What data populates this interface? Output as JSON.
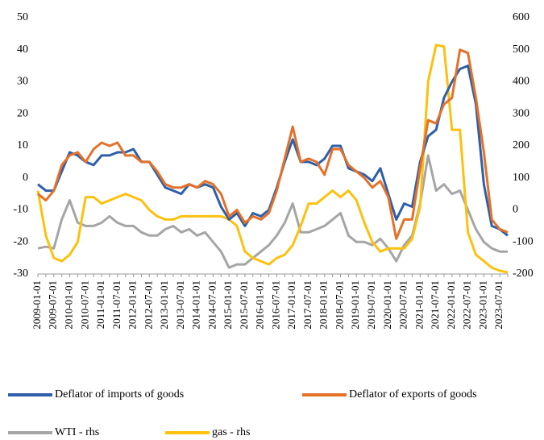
{
  "chart_data": {
    "type": "line",
    "categories": [
      "2009-01-01",
      null,
      "2009-07-01",
      null,
      "2010-01-01",
      null,
      "2010-07-01",
      null,
      "2011-01-01",
      null,
      "2011-07-01",
      null,
      "2012-01-01",
      null,
      "2012-07-01",
      null,
      "2013-01-01",
      null,
      "2013-07-01",
      null,
      "2014-01-01",
      null,
      "2014-07-01",
      null,
      "2015-01-01",
      null,
      "2015-07-01",
      null,
      "2016-01-01",
      null,
      "2016-07-01",
      null,
      "2017-01-01",
      null,
      "2017-07-01",
      null,
      "2018-01-01",
      null,
      "2018-07-01",
      null,
      "2019-01-01",
      null,
      "2019-07-01",
      null,
      "2020-01-01",
      null,
      "2020-07-01",
      null,
      "2021-01-01",
      null,
      "2021-07-01",
      null,
      "2022-01-01",
      null,
      "2022-07-01",
      null,
      "2023-01-01",
      null,
      "2023-07-01",
      null
    ],
    "series": [
      {
        "name": "Deflator of imports of goods",
        "color": "#2e5fa8",
        "values": [
          -2,
          -4,
          -4,
          2,
          8,
          7,
          5,
          4,
          7,
          7,
          8,
          8,
          9,
          5,
          5,
          1,
          -3,
          -4,
          -5,
          -2,
          -3,
          -2,
          -3,
          -9,
          -13,
          -11,
          -15,
          -11,
          -12,
          -10,
          -3,
          5,
          12,
          5,
          5,
          4,
          6,
          10,
          10,
          3,
          2,
          1,
          -1,
          3,
          -5,
          -13,
          -8,
          -9,
          5,
          13,
          15,
          25,
          30,
          34,
          35,
          23,
          -2,
          -15,
          -16,
          -18
        ]
      },
      {
        "name": "Deflator of exports of goods",
        "color": "#e4712a",
        "values": [
          -5,
          -7,
          -4,
          4,
          7,
          8,
          5,
          9,
          11,
          10,
          11,
          7,
          7,
          5,
          5,
          2,
          -2,
          -3,
          -3,
          -2,
          -3,
          -1,
          -2,
          -5,
          -12,
          -10,
          -14,
          -12,
          -13,
          -11,
          -4,
          6,
          16,
          5,
          6,
          5,
          1,
          9,
          9,
          4,
          2,
          0,
          -3,
          -1,
          -6,
          -19,
          -13,
          -13,
          3,
          18,
          17,
          23,
          25,
          40,
          39,
          25,
          8,
          -13,
          -16,
          -17
        ]
      },
      {
        "name": "WTI - rhs",
        "color": "#a5a5a5",
        "axis": "y2",
        "values": [
          -120,
          -115,
          -120,
          -30,
          30,
          -40,
          -50,
          -50,
          -40,
          -20,
          -40,
          -50,
          -50,
          -70,
          -80,
          -80,
          -60,
          -50,
          -70,
          -60,
          -80,
          -70,
          -100,
          -130,
          -180,
          -170,
          -170,
          -150,
          -130,
          -110,
          -80,
          -40,
          20,
          -70,
          -70,
          -60,
          -50,
          -30,
          -10,
          -80,
          -100,
          -100,
          -110,
          -90,
          -120,
          -160,
          -110,
          -80,
          20,
          170,
          60,
          80,
          50,
          60,
          0,
          -60,
          -100,
          -120,
          -130,
          -130
        ]
      },
      {
        "name": "gas - rhs",
        "color": "#fcc10f",
        "axis": "y2",
        "values": [
          60,
          -80,
          -150,
          -160,
          -140,
          -100,
          40,
          40,
          20,
          30,
          40,
          50,
          40,
          30,
          0,
          -20,
          -30,
          -30,
          -20,
          -20,
          -20,
          -20,
          -20,
          -20,
          -30,
          -50,
          -130,
          -150,
          -160,
          -170,
          -150,
          -140,
          -110,
          -50,
          20,
          20,
          40,
          60,
          40,
          60,
          30,
          -40,
          -100,
          -130,
          -120,
          -120,
          -120,
          -90,
          10,
          400,
          515,
          510,
          250,
          250,
          -70,
          -140,
          -160,
          -180,
          -190,
          -195
        ]
      }
    ],
    "ylim": [
      -30,
      50
    ],
    "yticks": [
      -30,
      -20,
      -10,
      0,
      10,
      20,
      30,
      40,
      50
    ],
    "y2lim": [
      -200,
      600
    ],
    "y2ticks": [
      -200,
      -100,
      0,
      100,
      200,
      300,
      400,
      500,
      600
    ]
  }
}
